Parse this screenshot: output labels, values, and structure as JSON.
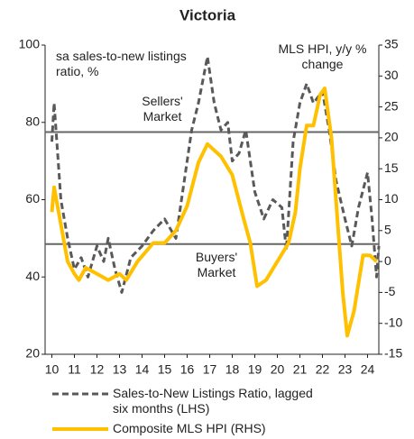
{
  "chart_data": {
    "type": "line",
    "title": "Victoria",
    "annotations": [
      "sa sales-to-new listings ratio, %",
      "MLS HPI, y/y % change",
      "Sellers' Market",
      "Buyers' Market"
    ],
    "xlim": [
      9.7,
      24.5
    ],
    "xticks": [
      10,
      11,
      12,
      13,
      14,
      15,
      16,
      17,
      18,
      19,
      20,
      21,
      22,
      23,
      24
    ],
    "ylim": [
      20,
      100
    ],
    "yticks": [
      20,
      40,
      60,
      80,
      100
    ],
    "y2lim": [
      -15,
      35
    ],
    "y2ticks": [
      -15,
      -10,
      -5,
      0,
      5,
      10,
      15,
      20,
      25,
      30,
      35
    ],
    "hlines": [
      77.5,
      48.5
    ],
    "hline_color": "#666666",
    "series": [
      {
        "name": "Sales-to-New Listings Ratio, lagged six months (LHS)",
        "color": "#595959",
        "dash": true,
        "x": [
          10,
          10.1,
          10.4,
          10.7,
          11,
          11.3,
          11.6,
          12,
          12.3,
          12.5,
          12.8,
          13.1,
          13.5,
          14,
          14.5,
          15,
          15.5,
          15.8,
          16.2,
          16.5,
          16.9,
          17.2,
          17.5,
          17.8,
          18,
          18.3,
          18.6,
          19,
          19.4,
          19.8,
          20.2,
          20.4,
          20.7,
          21,
          21.3,
          21.6,
          22,
          22.3,
          22.6,
          23,
          23.3,
          23.6,
          24,
          24.2,
          24.4,
          24.5
        ],
        "values": [
          75,
          85,
          60,
          50,
          42,
          45,
          40,
          48,
          44,
          50,
          42,
          36,
          45,
          48,
          52,
          55,
          50,
          62,
          78,
          85,
          97,
          85,
          78,
          80,
          70,
          72,
          78,
          62,
          55,
          60,
          58,
          47,
          75,
          85,
          90,
          85,
          88,
          78,
          65,
          55,
          48,
          58,
          67,
          55,
          40,
          48
        ]
      },
      {
        "name": "Composite MLS HPI (RHS)",
        "color": "#ffc000",
        "dash": false,
        "axis": "y2",
        "x": [
          10,
          10.1,
          10.3,
          10.7,
          11,
          11.2,
          11.5,
          12,
          12.5,
          13,
          13.3,
          13.8,
          14.5,
          15,
          15.5,
          16,
          16.5,
          16.9,
          17.5,
          18,
          18.5,
          18.8,
          19.1,
          19.5,
          20,
          20.5,
          20.8,
          21,
          21.3,
          21.6,
          21.9,
          22.1,
          22.4,
          22.7,
          22.9,
          23.1,
          23.4,
          23.8,
          24.1,
          24.4
        ],
        "values": [
          8,
          12,
          8,
          0,
          -2,
          -3,
          -1,
          -2,
          -3,
          -2,
          -3,
          0,
          3,
          3,
          5,
          9,
          16,
          19,
          17,
          14,
          7,
          3,
          -4,
          -3,
          0,
          3,
          8,
          15,
          22,
          22,
          27,
          28,
          20,
          5,
          -5,
          -12,
          -8,
          1,
          1,
          0
        ]
      }
    ]
  }
}
